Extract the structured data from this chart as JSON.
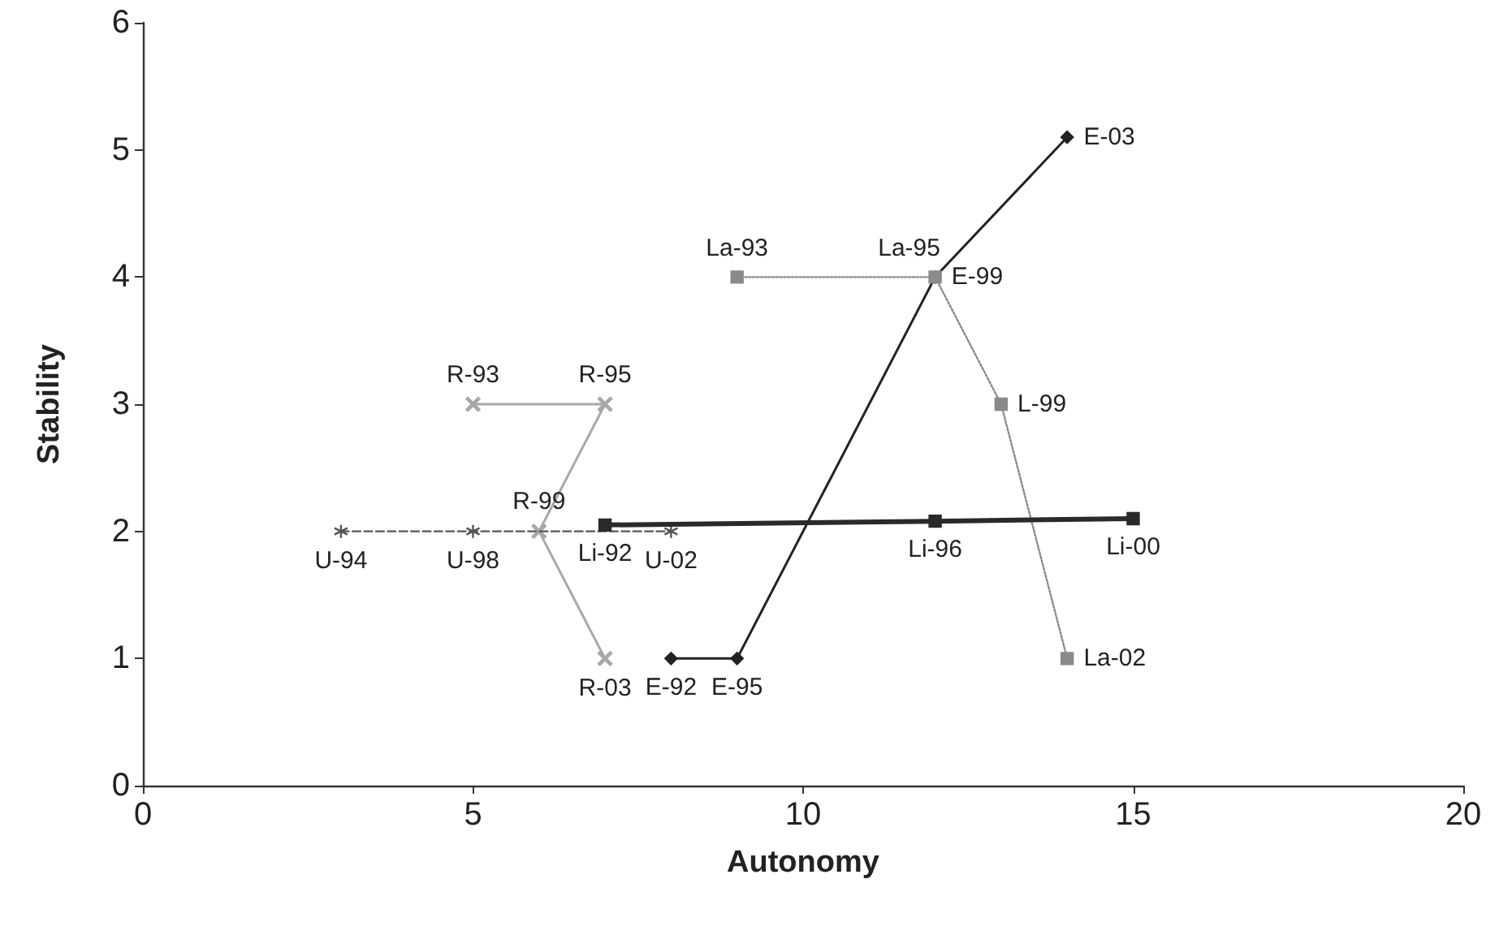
{
  "chart_data": {
    "type": "line",
    "xlabel": "Autonomy",
    "ylabel": "Stability",
    "xlim": [
      0,
      20
    ],
    "xticks": [
      0,
      5,
      10,
      15,
      20
    ],
    "ylim": [
      0,
      6
    ],
    "yticks": [
      0,
      1,
      2,
      3,
      4,
      5,
      6
    ],
    "grid": false,
    "series": [
      {
        "x": [
          8,
          9,
          12,
          14
        ],
        "values": [
          1,
          1,
          4,
          5.1
        ],
        "color": "#222222",
        "marker": "diamond",
        "line_style": "solid",
        "value_labels": [
          "E-92",
          "E-95",
          "E-99",
          "E-03"
        ]
      },
      {
        "x": [
          9,
          12,
          13,
          14
        ],
        "values": [
          4,
          4,
          3,
          1
        ],
        "color": "#8a8a8a",
        "marker": "square",
        "line_style": "dotted",
        "value_labels": [
          "La-93",
          "La-95",
          "L-99",
          "La-02"
        ]
      },
      {
        "x": [
          5,
          7,
          6,
          7
        ],
        "values": [
          3,
          3,
          2,
          1
        ],
        "color": "#a8a8a8",
        "marker": "cross",
        "line_style": "solid",
        "value_labels": [
          "R-93",
          "R-95",
          "R-99",
          "R-03"
        ]
      },
      {
        "x": [
          3,
          5,
          8
        ],
        "values": [
          2,
          2,
          2
        ],
        "color": "#555555",
        "marker": "star",
        "line_style": "dashed",
        "value_labels": [
          "U-94",
          "U-98",
          "U-02"
        ]
      },
      {
        "x": [
          7,
          12,
          15
        ],
        "values": [
          2.05,
          2.08,
          2.1
        ],
        "color": "#2a2a2a",
        "marker": "square",
        "line_style": "solid",
        "value_labels": [
          "Li-92",
          "Li-96",
          "Li-00"
        ]
      }
    ]
  }
}
